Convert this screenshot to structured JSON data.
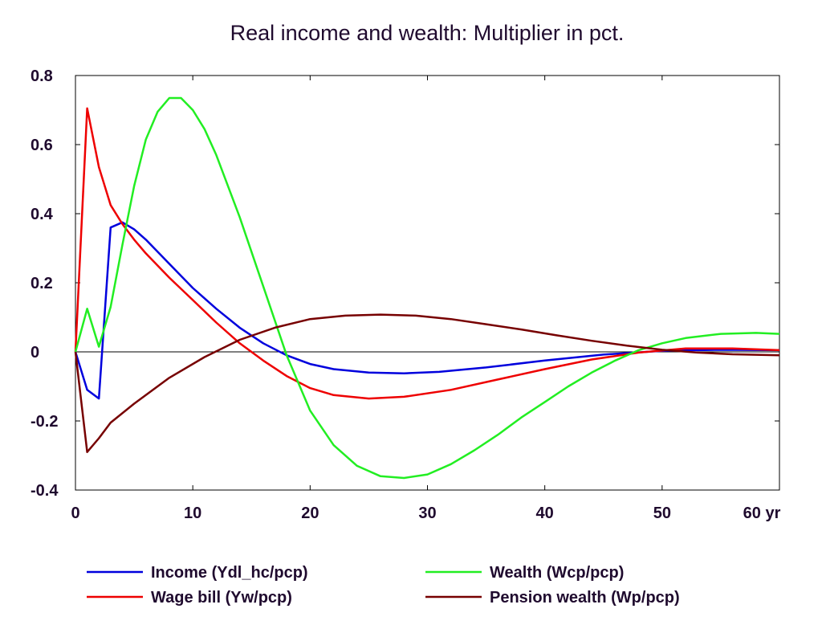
{
  "chart_data": {
    "type": "line",
    "title": "Real income and wealth: Multiplier in pct.",
    "x_unit_label": "yr",
    "xlim": [
      0,
      60
    ],
    "ylim": [
      -0.4,
      0.8
    ],
    "x_ticks": [
      0,
      10,
      20,
      30,
      40,
      50,
      60
    ],
    "x_tick_labels": [
      "0",
      "10",
      "20",
      "30",
      "40",
      "50",
      "60 yr"
    ],
    "y_ticks": [
      -0.4,
      -0.2,
      0,
      0.2,
      0.4,
      0.6,
      0.8
    ],
    "y_tick_labels": [
      "-0.4",
      "-0.2",
      "0",
      "0.2",
      "0.4",
      "0.6",
      "0.8"
    ],
    "grid": false,
    "legend_position": "bottom",
    "series": [
      {
        "name": "Income (Ydl_hc/pcp)",
        "color": "#0000dd",
        "points": [
          [
            0,
            0
          ],
          [
            1,
            -0.11
          ],
          [
            2,
            -0.135
          ],
          [
            3,
            0.36
          ],
          [
            4,
            0.375
          ],
          [
            5,
            0.355
          ],
          [
            6,
            0.325
          ],
          [
            8,
            0.255
          ],
          [
            10,
            0.185
          ],
          [
            12,
            0.125
          ],
          [
            14,
            0.07
          ],
          [
            16,
            0.025
          ],
          [
            18,
            -0.01
          ],
          [
            20,
            -0.035
          ],
          [
            22,
            -0.05
          ],
          [
            25,
            -0.06
          ],
          [
            28,
            -0.062
          ],
          [
            31,
            -0.058
          ],
          [
            35,
            -0.045
          ],
          [
            40,
            -0.025
          ],
          [
            45,
            -0.008
          ],
          [
            50,
            0.003
          ],
          [
            55,
            0.006
          ],
          [
            60,
            0.005
          ]
        ]
      },
      {
        "name": "Wage bill (Yw/pcp)",
        "color": "#ee0000",
        "points": [
          [
            0,
            0
          ],
          [
            1,
            0.705
          ],
          [
            2,
            0.535
          ],
          [
            3,
            0.425
          ],
          [
            4,
            0.37
          ],
          [
            5,
            0.325
          ],
          [
            6,
            0.285
          ],
          [
            8,
            0.215
          ],
          [
            10,
            0.15
          ],
          [
            12,
            0.085
          ],
          [
            14,
            0.025
          ],
          [
            16,
            -0.025
          ],
          [
            18,
            -0.07
          ],
          [
            20,
            -0.105
          ],
          [
            22,
            -0.125
          ],
          [
            25,
            -0.135
          ],
          [
            28,
            -0.13
          ],
          [
            32,
            -0.11
          ],
          [
            36,
            -0.08
          ],
          [
            40,
            -0.05
          ],
          [
            44,
            -0.022
          ],
          [
            48,
            -0.002
          ],
          [
            52,
            0.01
          ],
          [
            56,
            0.01
          ],
          [
            60,
            0.005
          ]
        ]
      },
      {
        "name": "Wealth (Wcp/pcp)",
        "color": "#22ee22",
        "points": [
          [
            0,
            0
          ],
          [
            1,
            0.125
          ],
          [
            2,
            0.015
          ],
          [
            3,
            0.13
          ],
          [
            4,
            0.31
          ],
          [
            5,
            0.48
          ],
          [
            6,
            0.615
          ],
          [
            7,
            0.695
          ],
          [
            8,
            0.735
          ],
          [
            9,
            0.735
          ],
          [
            10,
            0.7
          ],
          [
            11,
            0.645
          ],
          [
            12,
            0.57
          ],
          [
            14,
            0.39
          ],
          [
            16,
            0.19
          ],
          [
            18,
            -0.01
          ],
          [
            20,
            -0.17
          ],
          [
            22,
            -0.27
          ],
          [
            24,
            -0.33
          ],
          [
            26,
            -0.36
          ],
          [
            28,
            -0.365
          ],
          [
            30,
            -0.355
          ],
          [
            32,
            -0.325
          ],
          [
            34,
            -0.285
          ],
          [
            36,
            -0.24
          ],
          [
            38,
            -0.19
          ],
          [
            40,
            -0.145
          ],
          [
            42,
            -0.1
          ],
          [
            44,
            -0.06
          ],
          [
            46,
            -0.025
          ],
          [
            48,
            0.005
          ],
          [
            50,
            0.025
          ],
          [
            52,
            0.04
          ],
          [
            55,
            0.052
          ],
          [
            58,
            0.055
          ],
          [
            60,
            0.052
          ]
        ]
      },
      {
        "name": "Pension wealth (Wp/pcp)",
        "color": "#770000",
        "points": [
          [
            0,
            0
          ],
          [
            1,
            -0.29
          ],
          [
            2,
            -0.25
          ],
          [
            3,
            -0.205
          ],
          [
            5,
            -0.15
          ],
          [
            8,
            -0.075
          ],
          [
            11,
            -0.015
          ],
          [
            14,
            0.035
          ],
          [
            17,
            0.07
          ],
          [
            20,
            0.095
          ],
          [
            23,
            0.105
          ],
          [
            26,
            0.108
          ],
          [
            29,
            0.105
          ],
          [
            32,
            0.095
          ],
          [
            35,
            0.08
          ],
          [
            38,
            0.065
          ],
          [
            41,
            0.048
          ],
          [
            44,
            0.032
          ],
          [
            47,
            0.018
          ],
          [
            50,
            0.006
          ],
          [
            53,
            -0.002
          ],
          [
            56,
            -0.007
          ],
          [
            60,
            -0.01
          ]
        ]
      }
    ]
  }
}
